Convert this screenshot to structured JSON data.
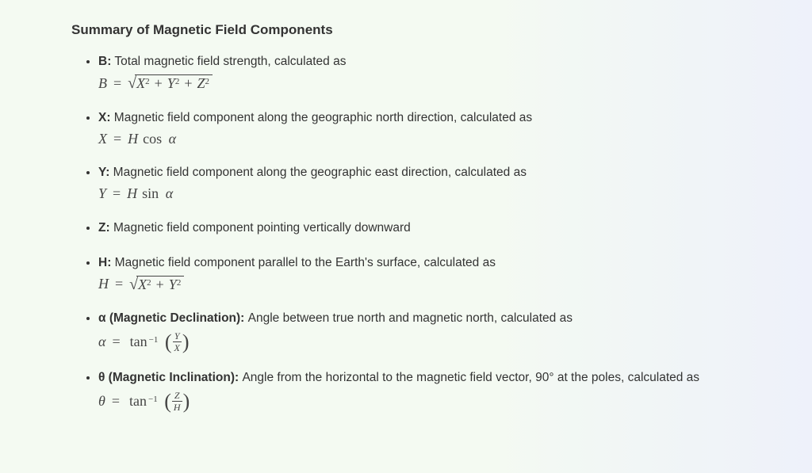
{
  "title": "Summary of Magnetic Field Components",
  "items": {
    "b": {
      "sym": "B:",
      "desc": " Total magnetic field strength, calculated as"
    },
    "x": {
      "sym": "X:",
      "desc": " Magnetic field component along the geographic north direction, calculated as"
    },
    "y": {
      "sym": "Y:",
      "desc": " Magnetic field component along the geographic east direction, calculated as"
    },
    "z": {
      "sym": "Z:",
      "desc": " Magnetic field component pointing vertically downward"
    },
    "h": {
      "sym": "H:",
      "desc": " Magnetic field component parallel to the Earth's surface, calculated as"
    },
    "a": {
      "sym": "α (Magnetic Declination):",
      "desc": " Angle between true north and magnetic north, calculated as"
    },
    "t": {
      "sym": "θ (Magnetic Inclination):",
      "desc": " Angle from the horizontal to the magnetic field vector, 90° at the poles, calculated as"
    }
  },
  "formulas": {
    "b": {
      "lhs": "B",
      "eq": "=",
      "x": "X",
      "y": "Y",
      "z": "Z",
      "sq": "2",
      "plus": "+"
    },
    "x": {
      "lhs": "X",
      "eq": "=",
      "h": "H",
      "fn": "cos",
      "arg": "α"
    },
    "y": {
      "lhs": "Y",
      "eq": "=",
      "h": "H",
      "fn": "sin",
      "arg": "α"
    },
    "h": {
      "lhs": "H",
      "eq": "=",
      "x": "X",
      "y": "Y",
      "sq": "2",
      "plus": "+"
    },
    "a": {
      "lhs": "α",
      "eq": "=",
      "fn": "tan",
      "exp": "−1",
      "num": "Y",
      "den": "X"
    },
    "t": {
      "lhs": "θ",
      "eq": "=",
      "fn": "tan",
      "exp": "−1",
      "num": "Z",
      "den": "H"
    }
  },
  "glyphs": {
    "radical": "√",
    "lparen": "(",
    "rparen": ")"
  }
}
